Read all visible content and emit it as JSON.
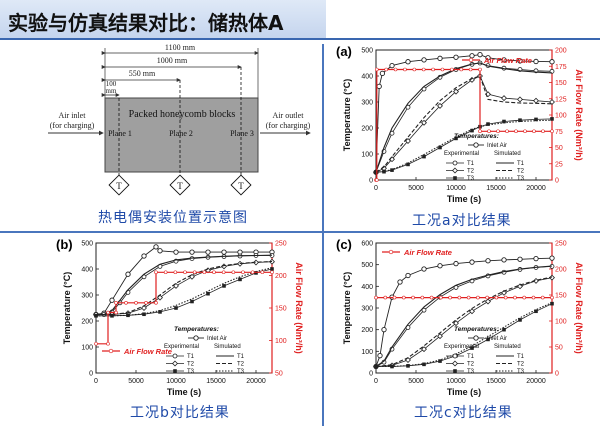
{
  "slide": {
    "title": "实验与仿真结果对比：储热体A",
    "captions": {
      "diagram": "热电偶安装位置示意图",
      "a": "工况a对比结果",
      "b": "工况b对比结果",
      "c": "工况c对比结果"
    }
  },
  "diagram": {
    "dim_1100": "1100 mm",
    "dim_1000": "1000 mm",
    "dim_550": "550 mm",
    "dim_100": "100",
    "dim_100_unit": "mm",
    "block_label": "Packed honeycomb blocks",
    "inlet_label_1": "Air inlet",
    "inlet_label_2": "(for charging)",
    "outlet_label_1": "Air outlet",
    "outlet_label_2": "(for charging)",
    "planes": [
      "Plane 1",
      "Plane 2",
      "Plane 3"
    ],
    "thermocouple_symbol": "T"
  },
  "colors": {
    "accent": "#3a67b0",
    "caption": "#1f4aa8",
    "flow": "#e02020",
    "curve": "#222222"
  },
  "chart_data": [
    {
      "type": "line",
      "panel_label": "(a)",
      "xlabel": "Time (s)",
      "ylabel": "Temperature (°C)",
      "y2label": "Air Flow Rate (Nm³/h)",
      "xlim": [
        0,
        22000
      ],
      "ylim": [
        0,
        500
      ],
      "y2lim": [
        0,
        200
      ],
      "xticks": [
        "0",
        "5000",
        "10000",
        "15000",
        "20000"
      ],
      "yticks": [
        "0",
        "100",
        "200",
        "300",
        "400",
        "500"
      ],
      "y2ticks": [
        "0",
        "25",
        "50",
        "75",
        "100",
        "125",
        "150",
        "175",
        "200"
      ],
      "legend_flow": "Air Flow Rate",
      "legend_flow_pos": "top-right",
      "legend": {
        "title": "Temperatures:",
        "inlet": "Inlet Air",
        "experimental": "Experimental",
        "simulated": "Simulated",
        "t1": "T1",
        "t2": "T2",
        "t3": "T3"
      },
      "series": [
        {
          "role": "inlet",
          "x": [
            0,
            400,
            800,
            2000,
            4000,
            6000,
            8000,
            10000,
            12000,
            13000,
            14000,
            16000,
            18000,
            20000,
            22000
          ],
          "values": [
            30,
            360,
            410,
            440,
            455,
            462,
            468,
            472,
            478,
            482,
            470,
            462,
            458,
            456,
            455
          ]
        },
        {
          "role": "T1 experimental",
          "x": [
            0,
            1000,
            2000,
            4000,
            6000,
            8000,
            10000,
            12000,
            13000,
            14000,
            16000,
            18000,
            20000,
            22000
          ],
          "values": [
            30,
            110,
            180,
            280,
            350,
            395,
            425,
            445,
            450,
            440,
            430,
            425,
            420,
            418
          ]
        },
        {
          "role": "T1 simulated",
          "x": [
            0,
            1000,
            2000,
            4000,
            6000,
            8000,
            10000,
            12000,
            13000,
            14000,
            16000,
            18000,
            20000,
            22000
          ],
          "values": [
            30,
            125,
            200,
            295,
            360,
            400,
            428,
            446,
            450,
            438,
            428,
            420,
            415,
            412
          ]
        },
        {
          "role": "T2 experimental",
          "x": [
            0,
            1000,
            2000,
            4000,
            6000,
            8000,
            10000,
            12000,
            13000,
            14000,
            16000,
            18000,
            20000,
            22000
          ],
          "values": [
            30,
            45,
            80,
            150,
            220,
            285,
            340,
            385,
            400,
            330,
            315,
            310,
            305,
            300
          ]
        },
        {
          "role": "T2 simulated",
          "x": [
            0,
            1000,
            2000,
            4000,
            6000,
            8000,
            10000,
            12000,
            13000,
            14000,
            16000,
            18000,
            20000,
            22000
          ],
          "values": [
            30,
            50,
            90,
            165,
            240,
            305,
            355,
            390,
            400,
            310,
            300,
            296,
            295,
            293
          ]
        },
        {
          "role": "T3 experimental",
          "x": [
            0,
            1000,
            2000,
            4000,
            6000,
            8000,
            10000,
            12000,
            13000,
            14000,
            16000,
            18000,
            20000,
            22000
          ],
          "values": [
            30,
            32,
            38,
            60,
            90,
            125,
            160,
            190,
            205,
            215,
            225,
            230,
            233,
            235
          ]
        },
        {
          "role": "T3 simulated",
          "x": [
            0,
            1000,
            2000,
            4000,
            6000,
            8000,
            10000,
            12000,
            13000,
            14000,
            16000,
            18000,
            20000,
            22000
          ],
          "values": [
            30,
            33,
            40,
            65,
            98,
            132,
            165,
            195,
            205,
            212,
            220,
            225,
            228,
            230
          ]
        },
        {
          "role": "Air Flow Rate",
          "axis": "right",
          "x": [
            0,
            100,
            100,
            13000,
            13000,
            22000
          ],
          "values": [
            0,
            0,
            170,
            170,
            75,
            75
          ]
        }
      ]
    },
    {
      "type": "line",
      "panel_label": "(b)",
      "xlabel": "Time (s)",
      "ylabel": "Temperature (°C)",
      "y2label": "Air Flow Rate (Nm³/h)",
      "xlim": [
        0,
        22000
      ],
      "ylim": [
        0,
        500
      ],
      "y2lim": [
        50,
        250
      ],
      "xticks": [
        "0",
        "5000",
        "10000",
        "15000",
        "20000"
      ],
      "yticks": [
        "0",
        "100",
        "200",
        "300",
        "400",
        "500"
      ],
      "y2ticks": [
        "50",
        "100",
        "150",
        "200",
        "250"
      ],
      "legend_flow": "Air Flow Rate",
      "legend_flow_pos": "bottom-left",
      "legend": {
        "title": "Temperatures:",
        "inlet": "Inlet Air",
        "experimental": "Experimental",
        "simulated": "Simulated",
        "t1": "T1",
        "t2": "T2",
        "t3": "T3"
      },
      "series": [
        {
          "role": "inlet",
          "x": [
            0,
            1000,
            2000,
            4000,
            6000,
            7500,
            8000,
            10000,
            12000,
            14000,
            16000,
            18000,
            20000,
            22000
          ],
          "values": [
            225,
            230,
            280,
            380,
            450,
            485,
            470,
            465,
            465,
            465,
            465,
            465,
            465,
            465
          ]
        },
        {
          "role": "T1 experimental",
          "x": [
            0,
            1000,
            2000,
            3000,
            4000,
            6000,
            8000,
            10000,
            12000,
            14000,
            16000,
            18000,
            20000,
            22000
          ],
          "values": [
            225,
            225,
            235,
            270,
            310,
            370,
            410,
            430,
            440,
            445,
            448,
            450,
            452,
            452
          ]
        },
        {
          "role": "T1 simulated",
          "x": [
            0,
            1000,
            2000,
            3000,
            4000,
            6000,
            8000,
            10000,
            12000,
            14000,
            16000,
            18000,
            20000,
            22000
          ],
          "values": [
            225,
            225,
            240,
            280,
            320,
            380,
            418,
            435,
            442,
            446,
            449,
            451,
            452,
            453
          ]
        },
        {
          "role": "T2 experimental",
          "x": [
            0,
            2000,
            4000,
            6000,
            8000,
            10000,
            12000,
            14000,
            16000,
            18000,
            20000,
            22000
          ],
          "values": [
            225,
            225,
            230,
            250,
            290,
            335,
            370,
            395,
            410,
            420,
            425,
            428
          ]
        },
        {
          "role": "T2 simulated",
          "x": [
            0,
            2000,
            4000,
            6000,
            8000,
            10000,
            12000,
            14000,
            16000,
            18000,
            20000,
            22000
          ],
          "values": [
            225,
            225,
            232,
            258,
            300,
            345,
            378,
            400,
            413,
            421,
            426,
            429
          ]
        },
        {
          "role": "T3 experimental",
          "x": [
            0,
            2000,
            4000,
            6000,
            8000,
            10000,
            12000,
            14000,
            16000,
            18000,
            20000,
            22000
          ],
          "values": [
            220,
            220,
            222,
            226,
            235,
            250,
            275,
            305,
            335,
            360,
            385,
            400
          ]
        },
        {
          "role": "T3 simulated",
          "x": [
            0,
            2000,
            4000,
            6000,
            8000,
            10000,
            12000,
            14000,
            16000,
            18000,
            20000,
            22000
          ],
          "values": [
            220,
            220,
            222,
            228,
            240,
            260,
            285,
            315,
            345,
            370,
            390,
            405
          ]
        },
        {
          "role": "Air Flow Rate",
          "axis": "right",
          "x": [
            0,
            1500,
            1500,
            2500,
            2500,
            7500,
            7500,
            22000
          ],
          "values": [
            95,
            95,
            143,
            143,
            158,
            158,
            205,
            205
          ]
        }
      ]
    },
    {
      "type": "line",
      "panel_label": "(c)",
      "xlabel": "Time (s)",
      "ylabel": "Temperature (°C)",
      "y2label": "Air Flow Rate (Nm³/h)",
      "xlim": [
        0,
        22000
      ],
      "ylim": [
        0,
        600
      ],
      "y2lim": [
        0,
        250
      ],
      "xticks": [
        "0",
        "5000",
        "10000",
        "15000",
        "20000"
      ],
      "yticks": [
        "0",
        "100",
        "200",
        "300",
        "400",
        "500",
        "600"
      ],
      "y2ticks": [
        "0",
        "50",
        "100",
        "150",
        "200",
        "250"
      ],
      "legend_flow": "Air Flow Rate",
      "legend_flow_pos": "top-left",
      "legend": {
        "title": "Temperatures:",
        "inlet": "Inlet Air",
        "experimental": "Experimental",
        "simulated": "Simulated",
        "t1": "T1",
        "t2": "T2",
        "t3": "T3"
      },
      "series": [
        {
          "role": "inlet",
          "x": [
            0,
            500,
            1000,
            2000,
            3000,
            4000,
            6000,
            8000,
            10000,
            12000,
            14000,
            16000,
            18000,
            20000,
            22000
          ],
          "values": [
            30,
            80,
            200,
            350,
            420,
            450,
            480,
            495,
            505,
            512,
            518,
            522,
            525,
            528,
            530
          ]
        },
        {
          "role": "T1 experimental",
          "x": [
            0,
            1000,
            2000,
            4000,
            6000,
            8000,
            10000,
            12000,
            14000,
            16000,
            18000,
            20000,
            22000
          ],
          "values": [
            30,
            50,
            110,
            210,
            290,
            350,
            395,
            425,
            448,
            465,
            478,
            487,
            492
          ]
        },
        {
          "role": "T1 simulated",
          "x": [
            0,
            1000,
            2000,
            4000,
            6000,
            8000,
            10000,
            12000,
            14000,
            16000,
            18000,
            20000,
            22000
          ],
          "values": [
            30,
            55,
            120,
            225,
            305,
            362,
            405,
            432,
            452,
            468,
            480,
            488,
            494
          ]
        },
        {
          "role": "T2 experimental",
          "x": [
            0,
            2000,
            4000,
            6000,
            8000,
            10000,
            12000,
            14000,
            16000,
            18000,
            20000,
            22000
          ],
          "values": [
            30,
            35,
            60,
            110,
            170,
            230,
            285,
            330,
            370,
            400,
            425,
            440
          ]
        },
        {
          "role": "T2 simulated",
          "x": [
            0,
            2000,
            4000,
            6000,
            8000,
            10000,
            12000,
            14000,
            16000,
            18000,
            20000,
            22000
          ],
          "values": [
            30,
            38,
            70,
            125,
            185,
            245,
            298,
            342,
            378,
            406,
            428,
            443
          ]
        },
        {
          "role": "T3 experimental",
          "x": [
            0,
            2000,
            4000,
            6000,
            8000,
            10000,
            12000,
            14000,
            16000,
            18000,
            20000,
            22000
          ],
          "values": [
            30,
            30,
            33,
            40,
            55,
            80,
            115,
            155,
            200,
            245,
            285,
            320
          ]
        },
        {
          "role": "T3 simulated",
          "x": [
            0,
            2000,
            4000,
            6000,
            8000,
            10000,
            12000,
            14000,
            16000,
            18000,
            20000,
            22000
          ],
          "values": [
            30,
            30,
            34,
            43,
            60,
            88,
            125,
            168,
            212,
            255,
            292,
            325
          ]
        },
        {
          "role": "Air Flow Rate",
          "axis": "right",
          "x": [
            0,
            22000
          ],
          "values": [
            145,
            145
          ]
        }
      ]
    }
  ]
}
